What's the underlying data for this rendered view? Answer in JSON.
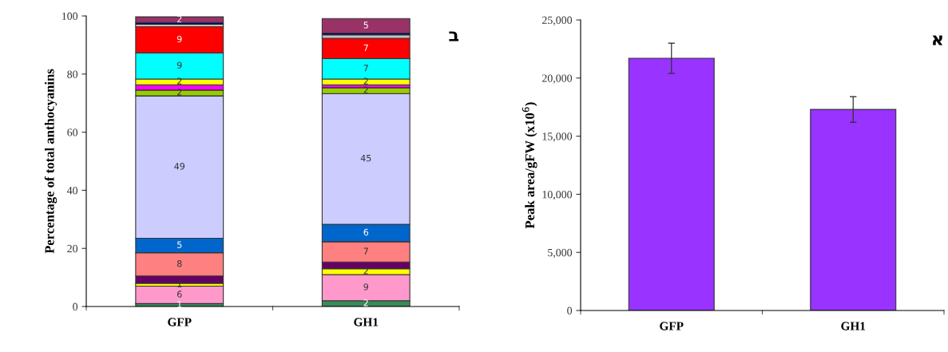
{
  "chart_data": [
    {
      "type": "bar",
      "stacked": true,
      "ylabel": "Percentage of total anthocyanins",
      "categories": [
        "GFP",
        "GH1"
      ],
      "ylim": [
        0,
        100
      ],
      "yticks": [
        0,
        20,
        40,
        60,
        80,
        100
      ],
      "grid": false,
      "legend": false,
      "annotations": [
        "ב"
      ],
      "series": [
        {
          "color": "#3a8a5a",
          "values": [
            1,
            2
          ],
          "value_labels": [
            "1",
            "2"
          ]
        },
        {
          "color": "#ff99cc",
          "values": [
            6,
            9
          ],
          "value_labels": [
            "6",
            "9"
          ]
        },
        {
          "color": "#ffff00",
          "values": [
            1,
            2
          ],
          "value_labels": [
            "1",
            "2"
          ]
        },
        {
          "color": "#660066",
          "values": [
            2.5,
            2.3
          ],
          "value_labels": [
            null,
            null
          ]
        },
        {
          "color": "#ff8080",
          "values": [
            8,
            7
          ],
          "value_labels": [
            "8",
            "7"
          ]
        },
        {
          "color": "#0066cc",
          "values": [
            5,
            6
          ],
          "value_labels": [
            "5",
            "6"
          ]
        },
        {
          "color": "#ccccff",
          "values": [
            49,
            45
          ],
          "value_labels": [
            "49",
            "45"
          ]
        },
        {
          "color": "#99cc00",
          "values": [
            2,
            2
          ],
          "value_labels": [
            "2",
            "2"
          ]
        },
        {
          "color": "#ff00ff",
          "values": [
            1.8,
            1
          ],
          "value_labels": [
            null,
            null
          ]
        },
        {
          "color": "#ffff00",
          "values": [
            2,
            2
          ],
          "value_labels": [
            "2",
            "2"
          ]
        },
        {
          "color": "#00ffff",
          "values": [
            9,
            7
          ],
          "value_labels": [
            "9",
            "7"
          ]
        },
        {
          "color": "#ff0000",
          "values": [
            9,
            7
          ],
          "value_labels": [
            "9",
            "7"
          ]
        },
        {
          "color": "#c0c0c0",
          "values": [
            0.8,
            1.2
          ],
          "value_labels": [
            null,
            null
          ]
        },
        {
          "color": "#000080",
          "values": [
            0.6,
            0.6
          ],
          "value_labels": [
            null,
            null
          ]
        },
        {
          "color": "#993366",
          "values": [
            2,
            5
          ],
          "value_labels": [
            "2",
            "5"
          ]
        }
      ]
    },
    {
      "type": "bar",
      "ylabel": "Peak area/gFW (x10$^{6}$)",
      "categories": [
        "GFP",
        "GH1"
      ],
      "ylim": [
        0,
        25000
      ],
      "yticks": [
        {
          "value": 0,
          "label": "0"
        },
        {
          "value": 5000,
          "label": "5,000"
        },
        {
          "value": 10000,
          "label": "10,000"
        },
        {
          "value": 15000,
          "label": "15,000"
        },
        {
          "value": 20000,
          "label": "20,000"
        },
        {
          "value": 25000,
          "label": "25,000"
        }
      ],
      "grid": false,
      "legend": false,
      "annotations": [
        "א"
      ],
      "series": [
        {
          "color": "#9933ff",
          "values": [
            21700,
            17300
          ],
          "errors": [
            1300,
            1100
          ]
        }
      ]
    }
  ]
}
